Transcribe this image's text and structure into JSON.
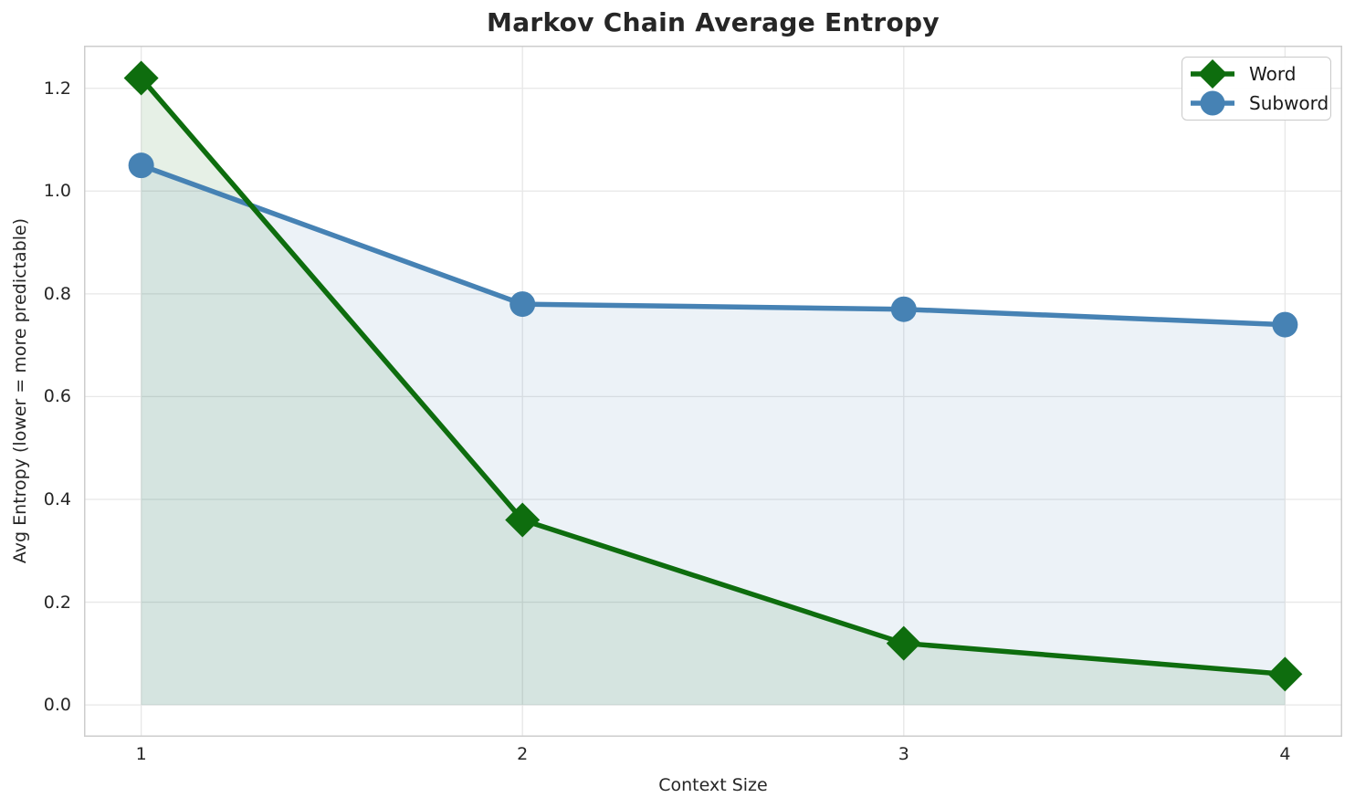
{
  "chart_data": {
    "type": "line",
    "title": "Markov Chain Average Entropy",
    "xlabel": "Context Size",
    "ylabel": "Avg Entropy (lower = more predictable)",
    "x": [
      1,
      2,
      3,
      4
    ],
    "series": [
      {
        "name": "Word",
        "marker": "diamond",
        "color": "#0e6d0e",
        "values": [
          1.22,
          0.36,
          0.12,
          0.06
        ]
      },
      {
        "name": "Subword",
        "marker": "circle",
        "color": "#4682b4",
        "values": [
          1.05,
          0.78,
          0.77,
          0.74
        ]
      }
    ],
    "xlim": [
      0.85,
      4.15
    ],
    "ylim": [
      -0.062,
      1.283
    ],
    "xticks": [
      1,
      2,
      3,
      4
    ],
    "yticks": [
      0.0,
      0.2,
      0.4,
      0.6,
      0.8,
      1.0,
      1.2
    ],
    "grid": true,
    "fill_to_zero": true,
    "fill_opacity": 0.1,
    "legend_position": "upper right",
    "colors": {
      "grid": "#e7e7e7",
      "spine": "#cdcdcd",
      "text": "#262626",
      "title": "#262626",
      "legend_text": "#1a1a1a"
    }
  }
}
